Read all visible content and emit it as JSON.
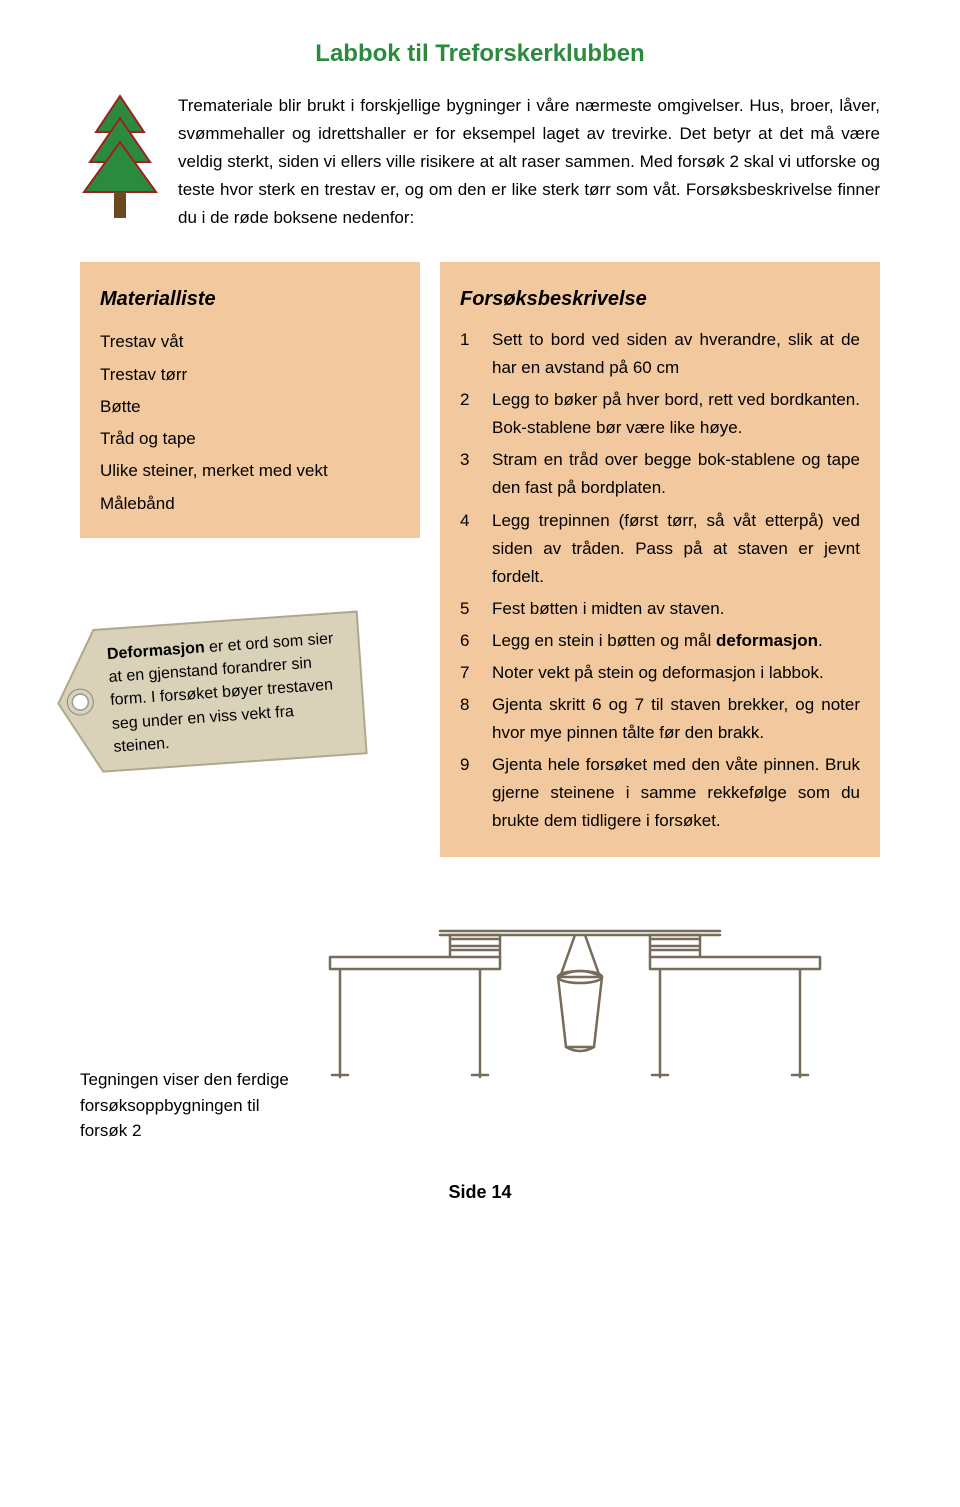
{
  "title": "Labbok til Treforskerklubben",
  "title_color": "#2b8a3e",
  "intro": "Tremateriale blir brukt i forskjellige bygninger i våre nærmeste omgivelser. Hus, broer, låver, svømmehaller og idrettshaller er for eksempel laget av trevirke. Det betyr at det må være veldig sterkt, siden vi ellers ville risikere at alt raser sammen. Med forsøk 2 skal vi utforske og teste hvor sterk en trestav er, og om den er like sterk tørr som våt. Forsøksbeskrivelse finner du i de røde boksene nedenfor:",
  "materialliste": {
    "title": "Materialliste",
    "bg_color": "#f2c89e",
    "items": [
      "Trestav våt",
      "Trestav tørr",
      "Bøtte",
      "Tråd og tape",
      "Ulike steiner, merket med vekt",
      "Målebånd"
    ]
  },
  "forsok": {
    "title": "Forsøksbeskrivelse",
    "bg_color": "#f2c89e",
    "steps": [
      "Sett to bord ved siden av hverandre, slik at de har en avstand på 60 cm",
      "Legg to bøker på hver bord, rett ved bordkanten. Bok-stablene bør være like høye.",
      "Stram en tråd over begge bok-stablene og tape den fast på bordplaten.",
      "Legg trepinnen (først tørr, så våt etterpå) ved siden av tråden. Pass på at staven er jevnt fordelt.",
      "Fest bøtten i midten av staven.",
      "Legg en stein i bøtten og mål deformasjon.",
      "Noter vekt på stein og deformasjon i labbok.",
      "Gjenta skritt 6 og 7 til staven brekker, og noter hvor mye pinnen tålte før den brakk.",
      "Gjenta hele forsøket med den våte pinnen. Bruk gjerne steinene i samme rekkefølge som du brukte dem tidligere i forsøket."
    ]
  },
  "tag": {
    "bg_color": "#d9d1b8",
    "bold_word": "Deformasjon",
    "text_rest": " er et ord som sier at en gjenstand forandrer sin form. I forsøket bøyer trestaven seg under en viss vekt fra steinen."
  },
  "caption": "Tegningen viser den ferdige forsøksoppbygningen til forsøk 2",
  "footer": "Side 14",
  "tree_colors": {
    "fill": "#2b8a3e",
    "trunk": "#6b4a1f",
    "outline": "#a02020"
  },
  "diagram_color": "#776b5a"
}
